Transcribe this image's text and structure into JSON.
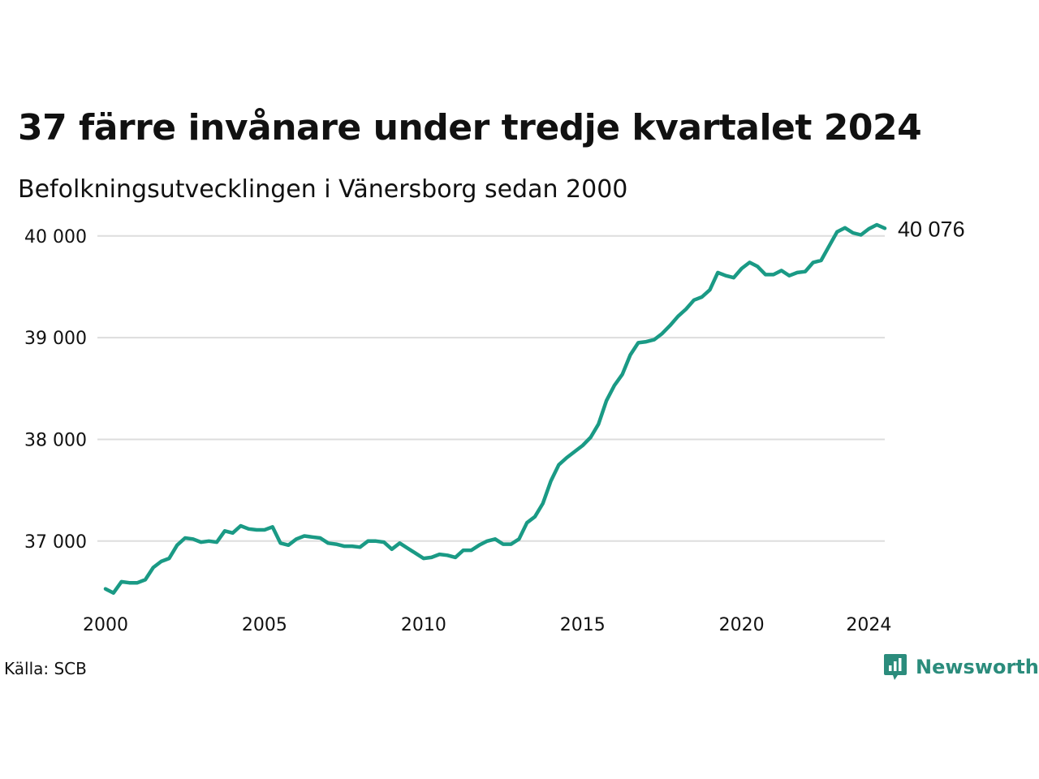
{
  "header": {
    "title": "37 färre invånare under tredje kvartalet 2024",
    "subtitle": "Befolkningsutvecklingen i Vänersborg sedan 2000"
  },
  "footer": {
    "source": "Källa: SCB",
    "brand": "Newsworthy",
    "brand_icon": "newsworthy-logo-icon"
  },
  "colors": {
    "line": "#1a9a85",
    "grid": "#dddddd",
    "brand": "#2b8c7c"
  },
  "chart_data": {
    "type": "line",
    "title": "37 färre invånare under tredje kvartalet 2024",
    "subtitle": "Befolkningsutvecklingen i Vänersborg sedan 2000",
    "xlabel": "",
    "ylabel": "",
    "grid": "horizontal",
    "legend": "none",
    "ylim": [
      36400,
      40150
    ],
    "xlim": [
      2000,
      2024.5
    ],
    "y_ticks": [
      37000,
      38000,
      39000,
      40000
    ],
    "y_tick_labels": [
      "37 000",
      "38 000",
      "39 000",
      "40 000"
    ],
    "x_ticks": [
      2000,
      2005,
      2010,
      2015,
      2020,
      2024
    ],
    "x_tick_labels": [
      "2000",
      "2005",
      "2010",
      "2015",
      "2020",
      "2024"
    ],
    "end_label": "40 076",
    "series": [
      {
        "x": [
          "2000-Q1",
          "2000-Q2",
          "2000-Q3",
          "2000-Q4",
          "2001-Q1",
          "2001-Q2",
          "2001-Q3",
          "2001-Q4",
          "2002-Q1",
          "2002-Q2",
          "2002-Q3",
          "2002-Q4",
          "2003-Q1",
          "2003-Q2",
          "2003-Q3",
          "2003-Q4",
          "2004-Q1",
          "2004-Q2",
          "2004-Q3",
          "2004-Q4",
          "2005-Q1",
          "2005-Q2",
          "2005-Q3",
          "2005-Q4",
          "2006-Q1",
          "2006-Q2",
          "2006-Q3",
          "2006-Q4",
          "2007-Q1",
          "2007-Q2",
          "2007-Q3",
          "2007-Q4",
          "2008-Q1",
          "2008-Q2",
          "2008-Q3",
          "2008-Q4",
          "2009-Q1",
          "2009-Q2",
          "2009-Q3",
          "2009-Q4",
          "2010-Q1",
          "2010-Q2",
          "2010-Q3",
          "2010-Q4",
          "2011-Q1",
          "2011-Q2",
          "2011-Q3",
          "2011-Q4",
          "2012-Q1",
          "2012-Q2",
          "2012-Q3",
          "2012-Q4",
          "2013-Q1",
          "2013-Q2",
          "2013-Q3",
          "2013-Q4",
          "2014-Q1",
          "2014-Q2",
          "2014-Q3",
          "2014-Q4",
          "2015-Q1",
          "2015-Q2",
          "2015-Q3",
          "2015-Q4",
          "2016-Q1",
          "2016-Q2",
          "2016-Q3",
          "2016-Q4",
          "2017-Q1",
          "2017-Q2",
          "2017-Q3",
          "2017-Q4",
          "2018-Q1",
          "2018-Q2",
          "2018-Q3",
          "2018-Q4",
          "2019-Q1",
          "2019-Q2",
          "2019-Q3",
          "2019-Q4",
          "2020-Q1",
          "2020-Q2",
          "2020-Q3",
          "2020-Q4",
          "2021-Q1",
          "2021-Q2",
          "2021-Q3",
          "2021-Q4",
          "2022-Q1",
          "2022-Q2",
          "2022-Q3",
          "2022-Q4",
          "2023-Q1",
          "2023-Q2",
          "2023-Q3",
          "2023-Q4",
          "2024-Q1",
          "2024-Q2",
          "2024-Q3"
        ],
        "values": [
          36530,
          36490,
          36600,
          36590,
          36590,
          36620,
          36740,
          36800,
          36830,
          36960,
          37030,
          37020,
          36990,
          37000,
          36990,
          37100,
          37080,
          37150,
          37120,
          37110,
          37110,
          37140,
          36980,
          36960,
          37020,
          37050,
          37040,
          37030,
          36980,
          36970,
          36950,
          36950,
          36940,
          37000,
          37000,
          36990,
          36920,
          36980,
          36930,
          36880,
          36830,
          36840,
          36870,
          36860,
          36840,
          36910,
          36910,
          36960,
          37000,
          37020,
          36970,
          36970,
          37020,
          37180,
          37240,
          37370,
          37590,
          37750,
          37820,
          37880,
          37940,
          38020,
          38150,
          38380,
          38530,
          38640,
          38830,
          38950,
          38960,
          38980,
          39040,
          39120,
          39210,
          39280,
          39370,
          39400,
          39470,
          39640,
          39610,
          39590,
          39680,
          39740,
          39700,
          39620,
          39620,
          39660,
          39610,
          39640,
          39650,
          39740,
          39760,
          39900,
          40040,
          40080,
          40030,
          40010,
          40070,
          40110,
          40076
        ]
      }
    ]
  }
}
